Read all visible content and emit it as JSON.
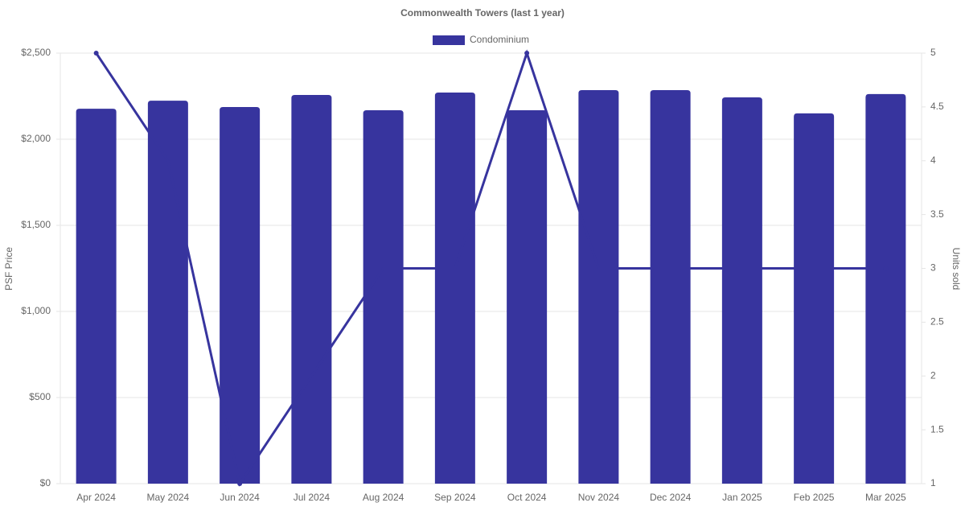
{
  "chart_data": {
    "type": "bar-line",
    "title": "Commonwealth Towers (last 1 year)",
    "y_label": "PSF Price",
    "y2_label": "Units sold",
    "categories": [
      "Apr 2024",
      "May 2024",
      "Jun 2024",
      "Jul 2024",
      "Aug 2024",
      "Sep 2024",
      "Oct 2024",
      "Nov 2024",
      "Dec 2024",
      "Jan 2025",
      "Feb 2025",
      "Mar 2025"
    ],
    "series": [
      {
        "name": "Condominium",
        "type": "bar",
        "color": "#37349e",
        "values": [
          2177,
          2224,
          2187,
          2257,
          2168,
          2271,
          2168,
          2285,
          2285,
          2243,
          2150,
          2262
        ]
      },
      {
        "type": "line",
        "axis": "y2",
        "color": "#37349e",
        "values": [
          5,
          4,
          1,
          2,
          3,
          3,
          5,
          3,
          3,
          3,
          3,
          3
        ]
      }
    ],
    "ylim": [
      0,
      2500
    ],
    "yticks": [
      {
        "value": 0,
        "label": "$0"
      },
      {
        "value": 500,
        "label": "$500"
      },
      {
        "value": 1000,
        "label": "$1,000"
      },
      {
        "value": 1500,
        "label": "$1,500"
      },
      {
        "value": 2000,
        "label": "$2,000"
      },
      {
        "value": 2500,
        "label": "$2,500"
      }
    ],
    "y2lim": [
      1,
      5
    ],
    "y2ticks": [
      1,
      1.5,
      2,
      2.5,
      3,
      3.5,
      4,
      4.5,
      5
    ],
    "grid": true
  }
}
